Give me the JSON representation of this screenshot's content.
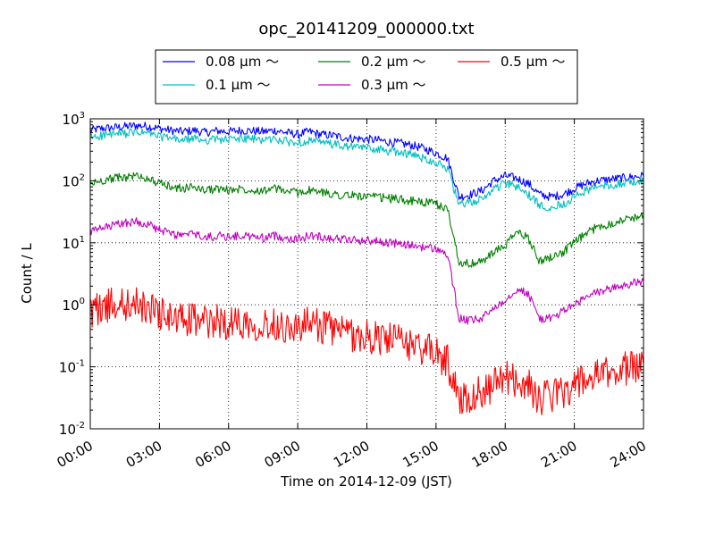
{
  "chart_data": {
    "type": "line",
    "title": "opc_20141209_000000.txt",
    "xlabel": "Time on 2014-12-09 (JST)",
    "ylabel": "Count / L",
    "yscale": "log",
    "ylim": [
      0.01,
      1000
    ],
    "xlim": [
      "00:00",
      "24:00"
    ],
    "grid": true,
    "legend_placement": "top-center, above plot",
    "x_ticks": [
      "00:00",
      "03:00",
      "06:00",
      "09:00",
      "12:00",
      "15:00",
      "18:00",
      "21:00",
      "24:00"
    ],
    "y_ticks": [
      {
        "base": "10",
        "exp": "-2"
      },
      {
        "base": "10",
        "exp": "-1"
      },
      {
        "base": "10",
        "exp": "0"
      },
      {
        "base": "10",
        "exp": "1"
      },
      {
        "base": "10",
        "exp": "2"
      },
      {
        "base": "10",
        "exp": "3"
      }
    ],
    "x_hours": [
      0,
      0.5,
      1,
      1.5,
      2,
      2.5,
      3,
      3.5,
      4,
      4.5,
      5,
      5.5,
      6,
      6.5,
      7,
      7.5,
      8,
      8.5,
      9,
      9.5,
      10,
      10.5,
      11,
      11.5,
      12,
      12.5,
      13,
      13.5,
      14,
      14.5,
      15,
      15.5,
      16,
      16.5,
      17,
      17.5,
      18,
      18.5,
      19,
      19.5,
      20,
      20.5,
      21,
      21.5,
      22,
      22.5,
      23,
      23.5,
      24
    ],
    "series": [
      {
        "name": "0.08 μm ～",
        "color": "#0000ff",
        "values": [
          650,
          700,
          720,
          750,
          780,
          760,
          700,
          650,
          620,
          650,
          600,
          640,
          620,
          650,
          640,
          620,
          650,
          600,
          560,
          620,
          560,
          540,
          500,
          480,
          470,
          450,
          420,
          400,
          370,
          330,
          280,
          230,
          55,
          60,
          70,
          100,
          120,
          110,
          90,
          60,
          55,
          60,
          75,
          90,
          100,
          105,
          110,
          115,
          120
        ]
      },
      {
        "name": "0.1 μm ～",
        "color": "#00bfbf",
        "values": [
          500,
          540,
          560,
          580,
          600,
          590,
          520,
          480,
          450,
          480,
          450,
          470,
          460,
          480,
          470,
          460,
          470,
          430,
          410,
          450,
          410,
          390,
          360,
          350,
          340,
          320,
          300,
          290,
          260,
          230,
          200,
          160,
          40,
          45,
          50,
          75,
          90,
          80,
          60,
          40,
          38,
          42,
          55,
          70,
          80,
          85,
          90,
          95,
          100
        ]
      },
      {
        "name": "0.2 μm ～",
        "color": "#008000",
        "values": [
          90,
          100,
          110,
          115,
          120,
          110,
          90,
          80,
          75,
          80,
          70,
          75,
          70,
          75,
          72,
          70,
          75,
          68,
          65,
          70,
          65,
          62,
          58,
          58,
          55,
          54,
          52,
          50,
          47,
          45,
          42,
          35,
          5,
          4.5,
          5,
          7,
          9,
          15,
          12,
          5,
          6,
          7,
          10,
          14,
          18,
          20,
          23,
          25,
          28
        ]
      },
      {
        "name": "0.3 μm ～",
        "color": "#bf00bf",
        "values": [
          15,
          17,
          19,
          21,
          22,
          20,
          16,
          14,
          13,
          14,
          12,
          13,
          12.5,
          13,
          12.5,
          12,
          13,
          12,
          11.5,
          13,
          12.5,
          12,
          11.5,
          11,
          11,
          10.5,
          10,
          9.5,
          9,
          8.5,
          8,
          6.5,
          0.6,
          0.55,
          0.6,
          0.9,
          1.2,
          1.8,
          1.5,
          0.6,
          0.6,
          0.8,
          1,
          1.3,
          1.6,
          1.8,
          2,
          2.2,
          2.4
        ]
      },
      {
        "name": "0.5 μm ～",
        "color": "#ff0000",
        "values": [
          0.8,
          0.9,
          1,
          1,
          1,
          0.9,
          0.75,
          0.6,
          0.55,
          0.6,
          0.5,
          0.55,
          0.5,
          0.55,
          0.5,
          0.48,
          0.5,
          0.45,
          0.42,
          0.5,
          0.45,
          0.42,
          0.35,
          0.32,
          0.3,
          0.3,
          0.28,
          0.25,
          0.22,
          0.2,
          0.16,
          0.12,
          0.03,
          0.035,
          0.04,
          0.05,
          0.07,
          0.06,
          0.05,
          0.03,
          0.035,
          0.04,
          0.05,
          0.06,
          0.07,
          0.08,
          0.09,
          0.1,
          0.11
        ]
      }
    ]
  }
}
